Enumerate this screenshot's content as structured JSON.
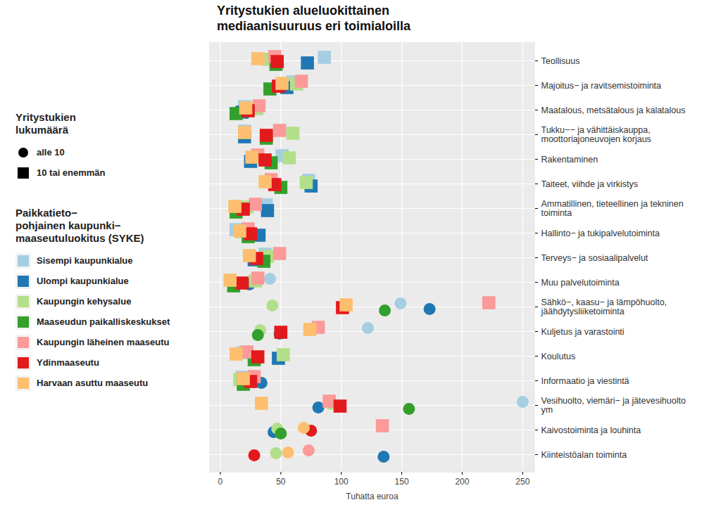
{
  "chart_data": {
    "type": "scatter",
    "title": "Yritystukien alueluokittainen\nmediaanisuuruus eri toimialoilla",
    "x_label": "Tuhatta euroa",
    "xlim": [
      -9,
      260
    ],
    "xticks": [
      0,
      50,
      100,
      150,
      200,
      250
    ],
    "grid": true,
    "categories": [
      "Teollisuus",
      "Majoitus− ja ravitsemistoiminta",
      "Maatalous, metsätalous ja kalatalous",
      "Tukku−− ja vähittäiskauppa,\nmoottoriajoneuvojen korjaus",
      "Rakentaminen",
      "Taiteet, viihde ja virkistys",
      "Ammatillinen, tieteellinen ja tekninen\ntoiminta",
      "Hallinto− ja tukipalvelutoiminta",
      "Terveys− ja sosiaalipalvelut",
      "Muu palvelutoiminta",
      "Sähkö−, kaasu− ja lämpöhuolto,\njäähdytysliiketoiminta",
      "Kuljetus ja varastointi",
      "Koulutus",
      "Informaatio ja viestintä",
      "Vesihuolto, viemäri− ja jätevesihuolto\nym",
      "Kaivostoiminta ja louhinta",
      "Kiinteistöalan toiminta"
    ],
    "marker_legend": {
      "title": "Yritystukien\nlukumäärä",
      "items": [
        {
          "label": "alle 10",
          "marker": "circle"
        },
        {
          "label": "10 tai enemmän",
          "marker": "square"
        }
      ]
    },
    "color_legend_title": "Paikkatieto−\npohjainen kaupunki−\nmaaseutuluokitus (SYKE)",
    "series": [
      {
        "name": "Sisempi kaupunkialue",
        "color": "#a6cee3",
        "values": [
          86,
          60,
          20,
          20,
          51,
          73,
          38,
          13,
          37,
          41,
          149,
          122,
          19,
          18,
          250,
          null,
          null
        ],
        "count_class": [
          "10 tai enemmän",
          "10 tai enemmän",
          "10 tai enemmän",
          "10 tai enemmän",
          "10 tai enemmän",
          "10 tai enemmän",
          "10 tai enemmän",
          "10 tai enemmän",
          "10 tai enemmän",
          "alle 10",
          "alle 10",
          "alle 10",
          "10 tai enemmän",
          "10 tai enemmän",
          "alle 10",
          null,
          null
        ]
      },
      {
        "name": "Ulompi kaupunkialue",
        "color": "#1f78b4",
        "values": [
          72,
          55,
          18,
          20,
          25,
          75,
          39,
          32,
          28,
          24,
          173,
          49,
          48,
          34,
          81,
          44,
          135
        ],
        "count_class": [
          "10 tai enemmän",
          "10 tai enemmän",
          "10 tai enemmän",
          "10 tai enemmän",
          "10 tai enemmän",
          "10 tai enemmän",
          "10 tai enemmän",
          "10 tai enemmän",
          "10 tai enemmän",
          "alle 10",
          "alle 10",
          "alle 10",
          "10 tai enemmän",
          "alle 10",
          "alle 10",
          "alle 10",
          "alle 10"
        ]
      },
      {
        "name": "Kaupungin kehysalue",
        "color": "#b2df8a",
        "values": [
          40,
          63,
          30,
          60,
          57,
          71,
          22,
          18,
          39,
          29,
          43,
          33,
          52,
          16,
          91,
          47,
          46
        ],
        "count_class": [
          "10 tai enemmän",
          "10 tai enemmän",
          "10 tai enemmän",
          "10 tai enemmän",
          "10 tai enemmän",
          "10 tai enemmän",
          "10 tai enemmän",
          "10 tai enemmän",
          "10 tai enemmän",
          "10 tai enemmän",
          "alle 10",
          "alle 10",
          "10 tai enemmän",
          "10 tai enemmän",
          "alle 10",
          "alle 10",
          "alle 10"
        ]
      },
      {
        "name": "Maaseudun paikalliskeskukset",
        "color": "#33a02c",
        "values": [
          46,
          41,
          13,
          38,
          42,
          50,
          13,
          23,
          36,
          11,
          136,
          31,
          28,
          19,
          156,
          50,
          null
        ],
        "count_class": [
          "10 tai enemmän",
          "10 tai enemmän",
          "10 tai enemmän",
          "10 tai enemmän",
          "10 tai enemmän",
          "10 tai enemmän",
          "10 tai enemmän",
          "10 tai enemmän",
          "10 tai enemmän",
          "10 tai enemmän",
          "alle 10",
          "alle 10",
          "10 tai enemmän",
          "10 tai enemmän",
          "alle 10",
          "alle 10",
          null
        ]
      },
      {
        "name": "Kaupungin läheinen maaseutu",
        "color": "#fb9a99",
        "values": [
          45,
          67,
          32,
          49,
          31,
          42,
          29,
          23,
          49,
          31,
          222,
          81,
          22,
          28,
          90,
          134,
          73
        ],
        "count_class": [
          "10 tai enemmän",
          "10 tai enemmän",
          "10 tai enemmän",
          "10 tai enemmän",
          "10 tai enemmän",
          "10 tai enemmän",
          "10 tai enemmän",
          "10 tai enemmän",
          "10 tai enemmän",
          "10 tai enemmän",
          "10 tai enemmän",
          "10 tai enemmän",
          "10 tai enemmän",
          "10 tai enemmän",
          "10 tai enemmän",
          "10 tai enemmän",
          "alle 10"
        ]
      },
      {
        "name": "Ydinmaaseutu",
        "color": "#e31a1c",
        "values": [
          47,
          48,
          23,
          38,
          37,
          45,
          19,
          25,
          30,
          18,
          101,
          50,
          31,
          25,
          99,
          75,
          28
        ],
        "count_class": [
          "10 tai enemmän",
          "10 tai enemmän",
          "10 tai enemmän",
          "10 tai enemmän",
          "10 tai enemmän",
          "10 tai enemmän",
          "10 tai enemmän",
          "10 tai enemmän",
          "10 tai enemmän",
          "10 tai enemmän",
          "10 tai enemmän",
          "10 tai enemmän",
          "10 tai enemmän",
          "10 tai enemmän",
          "10 tai enemmän",
          "alle 10",
          "alle 10"
        ]
      },
      {
        "name": "Harvaan asuttu maaseutu",
        "color": "#fdbf6f",
        "values": [
          31,
          51,
          21,
          20,
          26,
          37,
          12,
          16,
          24,
          8,
          104,
          74,
          13,
          19,
          34,
          69,
          56
        ],
        "count_class": [
          "10 tai enemmän",
          "10 tai enemmän",
          "10 tai enemmän",
          "10 tai enemmän",
          "10 tai enemmän",
          "10 tai enemmän",
          "10 tai enemmän",
          "10 tai enemmän",
          "10 tai enemmän",
          "10 tai enemmän",
          "10 tai enemmän",
          "10 tai enemmän",
          "10 tai enemmän",
          "10 tai enemmän",
          "10 tai enemmän",
          "alle 10",
          "alle 10"
        ]
      }
    ]
  }
}
